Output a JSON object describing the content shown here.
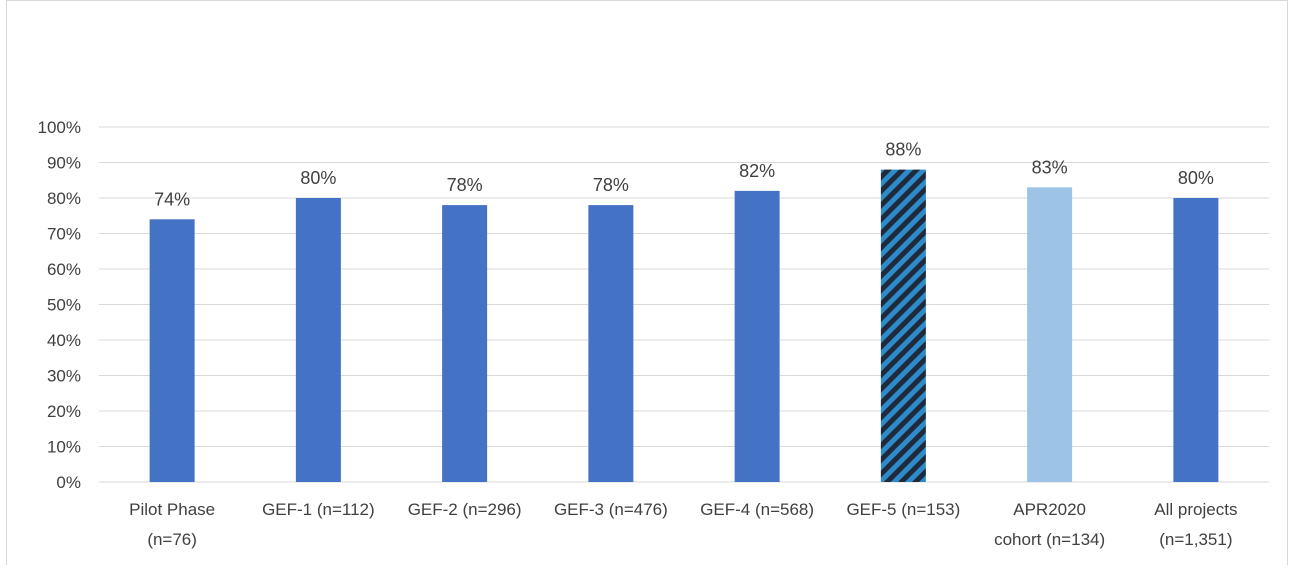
{
  "chart_data": {
    "type": "bar",
    "title": "",
    "xlabel": "",
    "ylabel": "",
    "ylim": [
      0,
      100
    ],
    "ytick_step": 10,
    "ytick_suffix": "%",
    "grid": true,
    "legend": "none",
    "categories": [
      [
        "Pilot Phase",
        "(n=76)"
      ],
      [
        "GEF-1 (n=112)"
      ],
      [
        "GEF-2 (n=296)"
      ],
      [
        "GEF-3 (n=476)"
      ],
      [
        "GEF-4 (n=568)"
      ],
      [
        "GEF-5 (n=153)"
      ],
      [
        "APR2020",
        "cohort (n=134)"
      ],
      [
        "All projects",
        "(n=1,351)"
      ]
    ],
    "values": [
      74,
      80,
      78,
      78,
      82,
      88,
      83,
      80
    ],
    "data_labels": [
      "74%",
      "80%",
      "78%",
      "78%",
      "82%",
      "88%",
      "83%",
      "80%"
    ],
    "bar_styles": [
      "solid",
      "solid",
      "solid",
      "solid",
      "solid",
      "hatched",
      "light",
      "solid"
    ],
    "colors": {
      "bar": "#4472c4",
      "bar_light": "#9dc3e6",
      "hatch_dark": "#1f2a3c",
      "hatch_light": "#2e8bc9",
      "grid": "#d9d9d9",
      "text": "#404040"
    }
  }
}
